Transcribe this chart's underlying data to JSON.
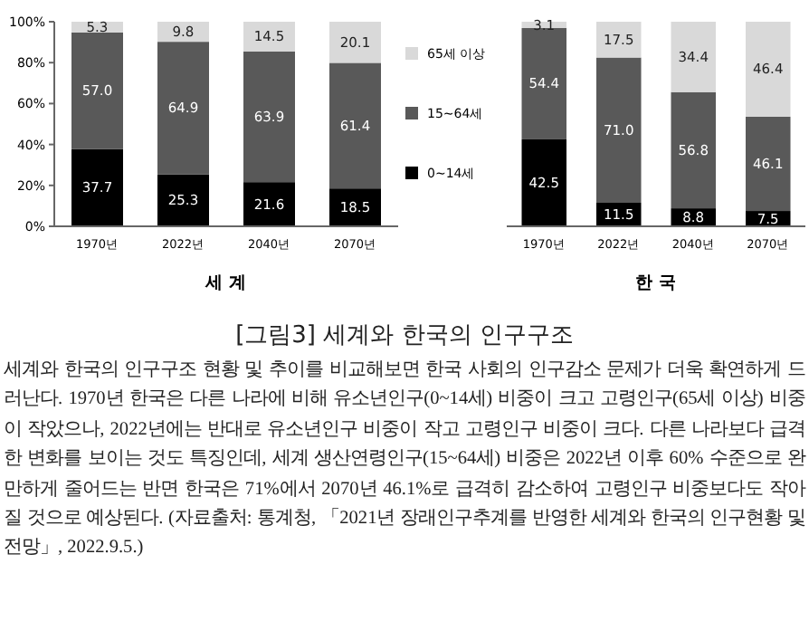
{
  "chart_data": [
    {
      "type": "bar",
      "stacked": true,
      "xlabel": "세 계",
      "categories": [
        "1970년",
        "2022년",
        "2040년",
        "2070년"
      ],
      "ylim": [
        0,
        100
      ],
      "yticks": [
        {
          "value": 0,
          "label": "0%"
        },
        {
          "value": 20,
          "label": "20%"
        },
        {
          "value": 40,
          "label": "40%"
        },
        {
          "value": 60,
          "label": "60%"
        },
        {
          "value": 80,
          "label": "80%"
        },
        {
          "value": 100,
          "label": "100%"
        }
      ],
      "legend": false,
      "series": [
        {
          "color": "#000000",
          "values": [
            37.7,
            25.3,
            21.6,
            18.5
          ],
          "value_labels": [
            "37.7",
            "25.3",
            "21.6",
            "18.5"
          ]
        },
        {
          "color": "#595959",
          "values": [
            57.0,
            64.9,
            63.9,
            61.4
          ],
          "value_labels": [
            "57.0",
            "64.9",
            "63.9",
            "61.4"
          ]
        },
        {
          "color": "#d9d9d9",
          "values": [
            5.3,
            9.8,
            14.5,
            20.1
          ],
          "value_labels": [
            "5.3",
            "9.8",
            "14.5",
            "20.1"
          ]
        }
      ]
    },
    {
      "type": "bar",
      "stacked": true,
      "xlabel": "한 국",
      "categories": [
        "1970년",
        "2022년",
        "2040년",
        "2070년"
      ],
      "ylim": [
        0,
        100
      ],
      "tick_labels": "x",
      "legend": "left",
      "series": [
        {
          "name": "0~14세",
          "color": "#000000",
          "values": [
            42.5,
            11.5,
            8.8,
            7.5
          ],
          "value_labels": [
            "42.5",
            "11.5",
            "8.8",
            "7.5"
          ]
        },
        {
          "name": "15~64세",
          "color": "#595959",
          "values": [
            54.4,
            71.0,
            56.8,
            46.1
          ],
          "value_labels": [
            "54.4",
            "71.0",
            "56.8",
            "46.1"
          ]
        },
        {
          "name": "65세 이상",
          "color": "#d9d9d9",
          "values": [
            3.1,
            17.5,
            34.4,
            46.4
          ],
          "value_labels": [
            "3.1",
            "17.5",
            "34.4",
            "46.4"
          ]
        }
      ]
    },
    {
      "type": "other",
      "title": "[그림3] 세계와 한국의 인구구조",
      "annotations": [
        "세계와 한국의 인구구조 현황 및 추이를 비교해보면 한국 사회의 인구감소 문제가 더욱 확연하게 드러난다. 1970년 한국은 다른 나라에 비해 유소년인구(0~14세) 비중이 크고 고령인구(65세 이상) 비중이 작았으나, 2022년에는 반대로 유소년인구 비중이 작고 고령인구 비중이 크다. 다른 나라보다 급격한 변화를 보이는 것도 특징인데, 세계 생산연령인구(15~64세) 비중은 2022년 이후 60% 수준으로 완만하게 줄어드는 반면 한국은 71%에서 2070년 46.1%로 급격히 감소하여 고령인구 비중보다도 작아질 것으로 예상된다. (자료출처: 통계청, 「2021년 장래인구추계를 반영한 세계와 한국의 인구현황 및 전망」, 2022.9.5.)"
      ]
    }
  ]
}
